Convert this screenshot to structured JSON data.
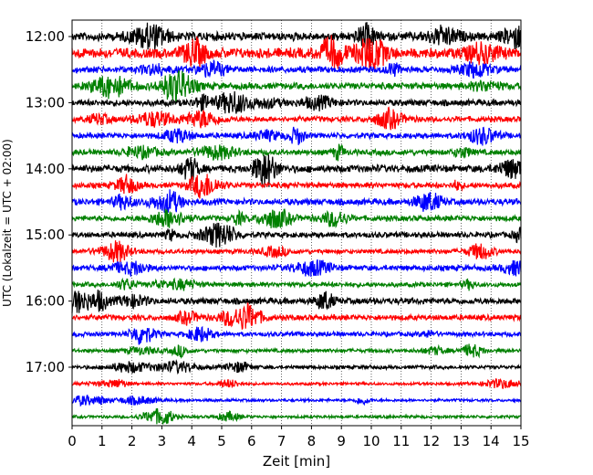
{
  "chart_data": {
    "type": "line",
    "title": "",
    "xlabel": "Zeit  [min]",
    "ylabel": "UTC (Lokalzeit = UTC + 02:00)",
    "xlim": [
      0,
      15
    ],
    "x_ticks": [
      0,
      1,
      2,
      3,
      4,
      5,
      6,
      7,
      8,
      9,
      10,
      11,
      12,
      13,
      14,
      15
    ],
    "x_tick_labels": [
      "0",
      "1",
      "2",
      "3",
      "4",
      "5",
      "6",
      "7",
      "8",
      "9",
      "10",
      "11",
      "12",
      "13",
      "14",
      "15"
    ],
    "y_tick_labels": [
      "12:00",
      "13:00",
      "14:00",
      "15:00",
      "16:00",
      "17:00"
    ],
    "y_tick_rows": [
      0,
      4,
      8,
      12,
      16,
      20
    ],
    "grid": "vertical dotted at each minute",
    "trace_interval_minutes": 15,
    "color_cycle": [
      "#000000",
      "#ff0000",
      "#0000ff",
      "#008000"
    ],
    "traces": [
      {
        "start": "12:00",
        "amplitude": 0.18
      },
      {
        "start": "12:15",
        "amplitude": 0.22
      },
      {
        "start": "12:30",
        "amplitude": 0.14
      },
      {
        "start": "12:45",
        "amplitude": 0.14
      },
      {
        "start": "13:00",
        "amplitude": 0.14
      },
      {
        "start": "13:15",
        "amplitude": 0.12
      },
      {
        "start": "13:30",
        "amplitude": 0.12
      },
      {
        "start": "13:45",
        "amplitude": 0.12
      },
      {
        "start": "14:00",
        "amplitude": 0.16
      },
      {
        "start": "14:15",
        "amplitude": 0.12
      },
      {
        "start": "14:30",
        "amplitude": 0.14
      },
      {
        "start": "14:45",
        "amplitude": 0.12
      },
      {
        "start": "15:00",
        "amplitude": 0.12
      },
      {
        "start": "15:15",
        "amplitude": 0.1
      },
      {
        "start": "15:30",
        "amplitude": 0.12
      },
      {
        "start": "15:45",
        "amplitude": 0.1
      },
      {
        "start": "16:00",
        "amplitude": 0.14
      },
      {
        "start": "16:15",
        "amplitude": 0.12
      },
      {
        "start": "16:30",
        "amplitude": 0.1
      },
      {
        "start": "16:45",
        "amplitude": 0.08
      },
      {
        "start": "17:00",
        "amplitude": 0.08
      },
      {
        "start": "17:15",
        "amplitude": 0.06
      },
      {
        "start": "17:30",
        "amplitude": 0.06
      },
      {
        "start": "17:45",
        "amplitude": 0.06
      }
    ]
  }
}
